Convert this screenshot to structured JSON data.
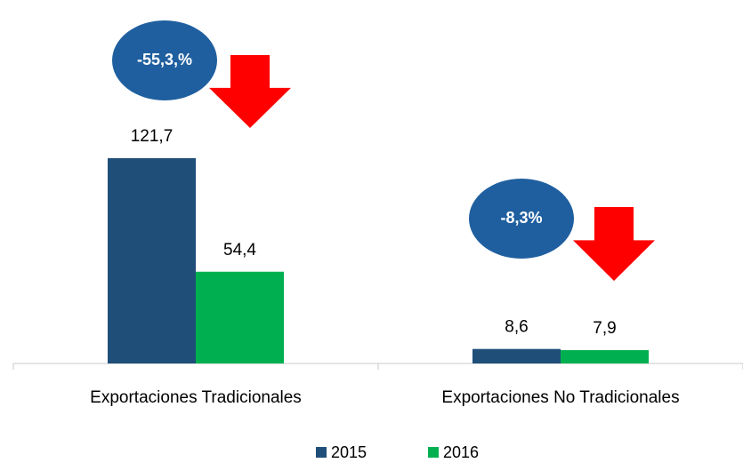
{
  "chart_data": {
    "type": "bar",
    "categories": [
      "Exportaciones Tradicionales",
      "Exportaciones No Tradicionales"
    ],
    "series": [
      {
        "name": "2015",
        "color": "#1f4e79",
        "values": [
          121.7,
          8.6
        ],
        "value_labels": [
          "121,7",
          "8,6"
        ]
      },
      {
        "name": "2016",
        "color": "#00b050",
        "values": [
          54.4,
          7.9
        ],
        "value_labels": [
          "54,4",
          "7,9"
        ]
      }
    ],
    "annotations": [
      {
        "text": "-55,3,%"
      },
      {
        "text": "-8,3%"
      }
    ],
    "legend": "bottom"
  }
}
